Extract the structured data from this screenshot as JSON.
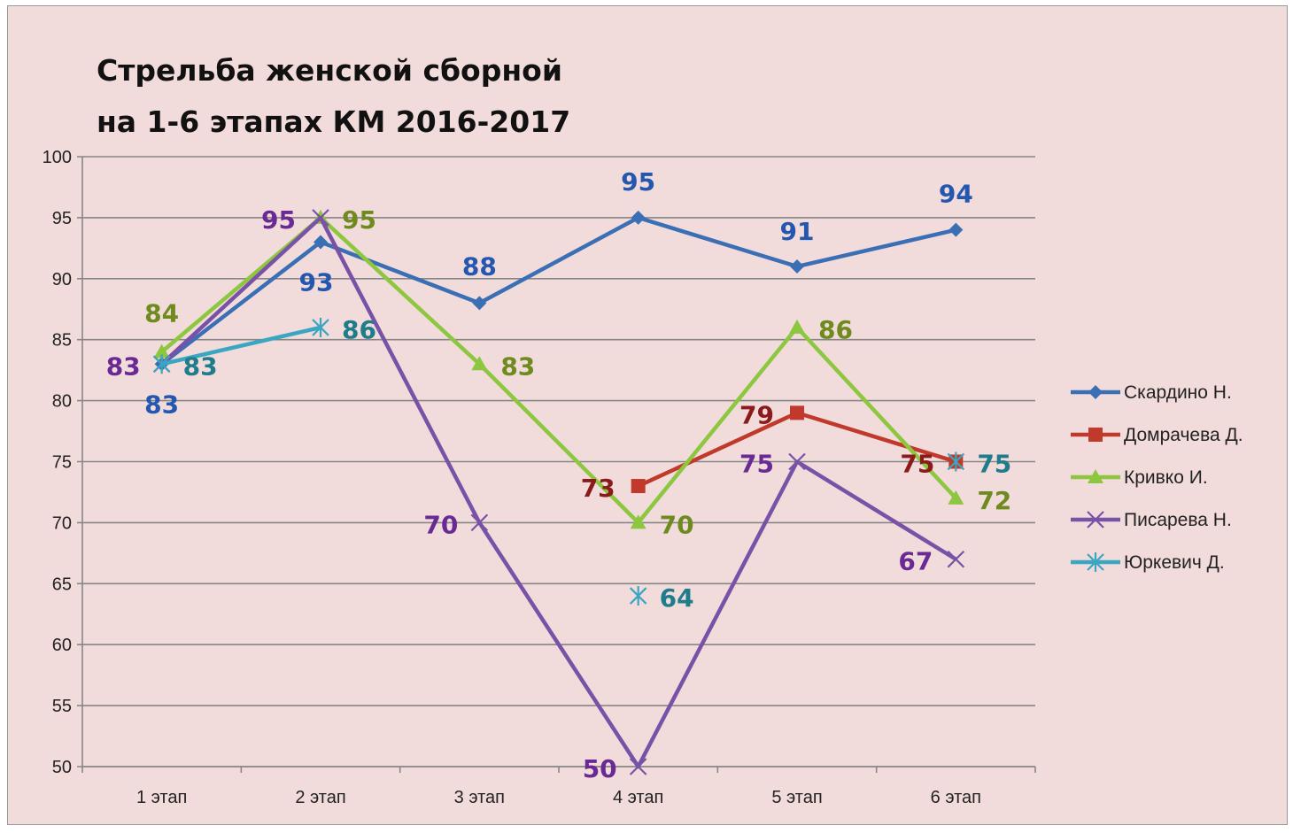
{
  "chart_data": {
    "type": "line",
    "title": "Стрельба женской сборной",
    "subtitle": "на 1-6 этапах КМ 2016-2017",
    "xlabel": "",
    "ylabel": "",
    "categories": [
      "1 этап",
      "2 этап",
      "3 этап",
      "4 этап",
      "5 этап",
      "6 этап"
    ],
    "ylim": [
      50,
      100
    ],
    "yticks": [
      50,
      55,
      60,
      65,
      70,
      75,
      80,
      85,
      90,
      95,
      100
    ],
    "grid": true,
    "legend_position": "right",
    "series": [
      {
        "name": "Скардино Н.",
        "values": [
          83,
          93,
          88,
          95,
          91,
          94
        ],
        "color": "#3a6fb5",
        "label_color": "#2457b0",
        "marker": "diamond"
      },
      {
        "name": "Домрачева Д.",
        "values": [
          null,
          null,
          null,
          73,
          79,
          75
        ],
        "color": "#c0392b",
        "label_color": "#8b1a1a",
        "marker": "square"
      },
      {
        "name": "Кривко И.",
        "values": [
          84,
          95,
          83,
          70,
          86,
          72
        ],
        "color": "#8dc63f",
        "label_color": "#6f8a1e",
        "marker": "triangle"
      },
      {
        "name": "Писарева Н.",
        "values": [
          83,
          95,
          70,
          50,
          75,
          67
        ],
        "color": "#7952a8",
        "label_color": "#6a2a94",
        "marker": "x"
      },
      {
        "name": "Юркевич Д.",
        "values": [
          83,
          86,
          null,
          64,
          null,
          75
        ],
        "color": "#3aa6c2",
        "label_color": "#1f7c8a",
        "marker": "star"
      }
    ]
  }
}
